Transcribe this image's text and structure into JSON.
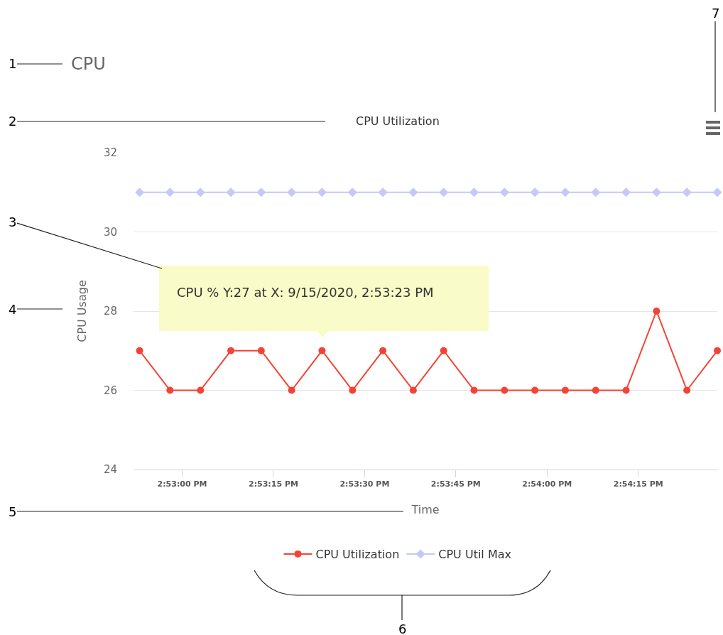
{
  "chart_data": {
    "type": "line",
    "title": "CPU",
    "subtitle": "CPU Utilization",
    "xlabel": "Time",
    "ylabel": "CPU Usage",
    "x": [
      "2020-09-15T14:52:53",
      "2020-09-15T14:52:58",
      "2020-09-15T14:53:03",
      "2020-09-15T14:53:08",
      "2020-09-15T14:53:13",
      "2020-09-15T14:53:18",
      "2020-09-15T14:53:23",
      "2020-09-15T14:53:28",
      "2020-09-15T14:53:33",
      "2020-09-15T14:53:38",
      "2020-09-15T14:53:43",
      "2020-09-15T14:53:48",
      "2020-09-15T14:53:53",
      "2020-09-15T14:53:58",
      "2020-09-15T14:54:03",
      "2020-09-15T14:54:08",
      "2020-09-15T14:54:13",
      "2020-09-15T14:54:18",
      "2020-09-15T14:54:23",
      "2020-09-15T14:54:28"
    ],
    "series": [
      {
        "name": "CPU Utilization",
        "color": "#f44336",
        "marker": "circle",
        "values": [
          27,
          26,
          26,
          27,
          27,
          26,
          27,
          26,
          27,
          26,
          27,
          26,
          26,
          26,
          26,
          26,
          26,
          28,
          26,
          27
        ]
      },
      {
        "name": "CPU Util Max",
        "color": "#c5c8f8",
        "marker": "diamond",
        "values": [
          31,
          31,
          31,
          31,
          31,
          31,
          31,
          31,
          31,
          31,
          31,
          31,
          31,
          31,
          31,
          31,
          31,
          31,
          31,
          31
        ]
      }
    ],
    "xlim": [
      "2020-09-15T14:52:52",
      "2020-09-15T14:54:28"
    ],
    "xticks": [
      {
        "value": "2020-09-15T14:53:00",
        "label": "2:53:00 PM"
      },
      {
        "value": "2020-09-15T14:53:15",
        "label": "2:53:15 PM"
      },
      {
        "value": "2020-09-15T14:53:30",
        "label": "2:53:30 PM"
      },
      {
        "value": "2020-09-15T14:53:45",
        "label": "2:53:45 PM"
      },
      {
        "value": "2020-09-15T14:54:00",
        "label": "2:54:00 PM"
      },
      {
        "value": "2020-09-15T14:54:15",
        "label": "2:54:15 PM"
      }
    ],
    "ylim": [
      24,
      32
    ],
    "yticks": [
      24,
      26,
      28,
      30,
      32
    ],
    "grid": "y",
    "legend": "bottom",
    "annotations": [
      "CPU % Y:27 at X: 9/15/2020, 2:53:23 PM",
      "1",
      "2",
      "3",
      "4",
      "5",
      "6",
      "7"
    ]
  }
}
